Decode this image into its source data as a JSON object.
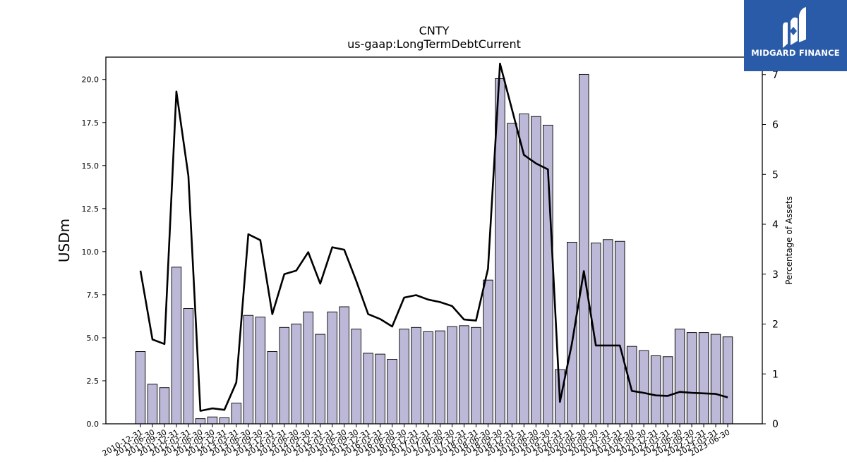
{
  "chart_data": {
    "type": "bar+line",
    "title": "CNTY",
    "subtitle": "us-gaap:LongTermDebtCurrent",
    "ylabel": "USDm",
    "y2label": "Percentage of Assets",
    "ylim": [
      0,
      21.3
    ],
    "y2lim": [
      0,
      7.35
    ],
    "yticks": [
      "0.0",
      "2.5",
      "5.0",
      "7.5",
      "10.0",
      "12.5",
      "15.0",
      "17.5",
      "20.0"
    ],
    "y2ticks": [
      "0",
      "1",
      "2",
      "3",
      "4",
      "5",
      "6",
      "7"
    ],
    "categories": [
      "2010-12-31",
      "2011-06-30",
      "2011-09-30",
      "2011-12-31",
      "2012-03-31",
      "2012-06-30",
      "2012-09-30",
      "2012-12-31",
      "2013-03-31",
      "2013-06-30",
      "2013-09-30",
      "2013-12-31",
      "2014-03-31",
      "2014-06-30",
      "2014-09-30",
      "2014-12-31",
      "2015-03-31",
      "2015-06-30",
      "2015-09-30",
      "2015-12-31",
      "2016-03-31",
      "2016-06-30",
      "2016-09-30",
      "2016-12-31",
      "2017-03-31",
      "2017-06-30",
      "2017-09-30",
      "2017-12-31",
      "2018-03-31",
      "2018-06-30",
      "2018-09-30",
      "2018-12-31",
      "2019-03-31",
      "2019-06-30",
      "2019-09-30",
      "2019-12-31",
      "2020-03-31",
      "2020-06-30",
      "2020-09-30",
      "2020-12-31",
      "2021-03-31",
      "2021-06-30",
      "2021-09-30",
      "2021-12-31",
      "2022-03-31",
      "2022-06-30",
      "2022-09-30",
      "2022-12-31",
      "2023-03-31",
      "2023-06-30"
    ],
    "series": [
      {
        "kind": "bar",
        "values": [
          4.2,
          2.3,
          2.1,
          9.1,
          6.7,
          0.3,
          0.4,
          0.35,
          1.2,
          6.3,
          6.2,
          4.2,
          5.6,
          5.8,
          6.5,
          5.2,
          6.5,
          6.8,
          5.5,
          4.1,
          4.05,
          3.75,
          5.5,
          5.6,
          5.35,
          5.4,
          5.65,
          5.7,
          5.6,
          8.35,
          20.05,
          17.45,
          18.0,
          17.85,
          17.35,
          3.15,
          10.55,
          20.3,
          10.5,
          10.7,
          10.6,
          4.5,
          4.25,
          3.95,
          3.9,
          5.5,
          5.3,
          5.3,
          5.2,
          5.05
        ]
      },
      {
        "kind": "line",
        "axis": "right",
        "values": [
          3.07,
          1.69,
          1.6,
          6.66,
          4.97,
          0.26,
          0.31,
          0.28,
          0.83,
          3.8,
          3.68,
          2.2,
          3.0,
          3.07,
          3.44,
          2.81,
          3.54,
          3.49,
          2.87,
          2.2,
          2.1,
          1.95,
          2.53,
          2.58,
          2.49,
          2.44,
          2.36,
          2.09,
          2.07,
          3.11,
          7.22,
          6.3,
          5.39,
          5.22,
          5.1,
          0.44,
          1.61,
          3.06,
          1.57,
          1.57,
          1.57,
          0.66,
          0.62,
          0.57,
          0.56,
          0.64,
          0.62,
          0.61,
          0.6,
          0.53
        ]
      }
    ],
    "bar_color": "#bcb8d8",
    "line_color": "#000000",
    "grid": false
  },
  "logo": {
    "text": "MIDGARD FINANCE",
    "icon": "midgard-logo-icon",
    "color": "#2a5ba8"
  }
}
